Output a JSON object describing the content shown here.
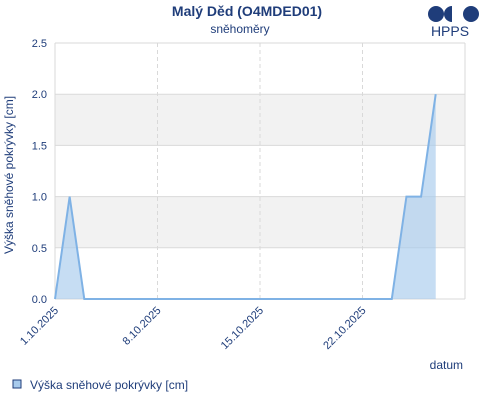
{
  "colors": {
    "text": "#1f3d7a",
    "line": "#7fb2e5",
    "fill": "#a8cbec",
    "band": "#f2f2f2",
    "grid": "#d9d9d9",
    "logo": "#1f3d7a"
  },
  "logo": {
    "text": "HPPS"
  },
  "chart_data": {
    "type": "area",
    "title": "Malý Děd (O4MDED01)",
    "subtitle": "sněhoměry",
    "ylabel": "Výška sněhové pokrývky [cm]",
    "xlabel": "datum",
    "ylim": [
      0,
      2.5
    ],
    "yticks": [
      "0.0",
      "0.5",
      "1.0",
      "1.5",
      "2.0",
      "2.5"
    ],
    "ytick_values": [
      0,
      0.5,
      1.0,
      1.5,
      2.0,
      2.5
    ],
    "xlim": [
      "2025-10-01",
      "2025-10-29"
    ],
    "xticks": [
      "1.10.2025",
      "8.10.2025",
      "15.10.2025",
      "22.10.2025"
    ],
    "xtick_dates": [
      "2025-10-01",
      "2025-10-08",
      "2025-10-15",
      "2025-10-22"
    ],
    "grid": true,
    "legend_position": "bottom-left",
    "series": [
      {
        "name": "Výška sněhové pokrývky [cm]",
        "x": [
          "2025-10-01",
          "2025-10-02",
          "2025-10-03",
          "2025-10-24",
          "2025-10-25",
          "2025-10-26",
          "2025-10-27"
        ],
        "y": [
          0,
          1,
          0,
          0,
          1,
          1,
          2
        ]
      }
    ]
  }
}
